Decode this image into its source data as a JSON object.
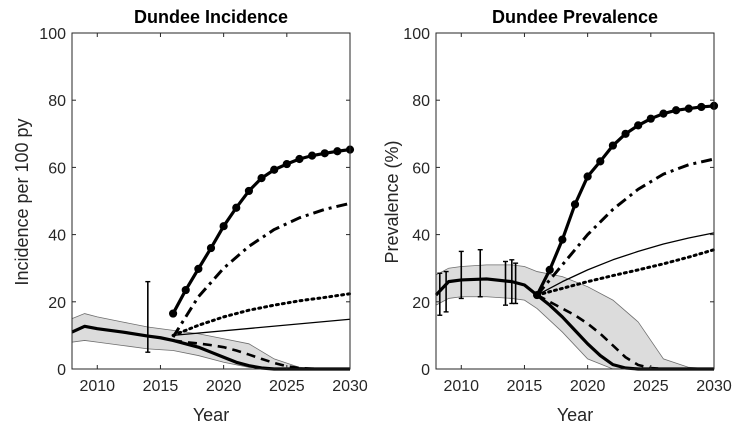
{
  "chart_data": [
    {
      "type": "line",
      "title": "Dundee Incidence",
      "xlabel": "Year",
      "ylabel": "Incidence per 100 py",
      "xlim": [
        2008,
        2030
      ],
      "ylim": [
        0,
        100
      ],
      "xticks": [
        2010,
        2015,
        2020,
        2025,
        2030
      ],
      "yticks": [
        0,
        20,
        40,
        60,
        80,
        100
      ],
      "grid": false,
      "band": {
        "x": [
          2008,
          2009,
          2010,
          2012,
          2014,
          2016,
          2018,
          2020,
          2022,
          2024,
          2026,
          2028,
          2030
        ],
        "upper": [
          15,
          16.5,
          15.5,
          14,
          12.5,
          11.5,
          10.5,
          9,
          7.5,
          3,
          0.5,
          0,
          0
        ],
        "lower": [
          8,
          8.5,
          8,
          7,
          6,
          5.5,
          4,
          2,
          0.5,
          0,
          0,
          0,
          0
        ]
      },
      "series": [
        {
          "style": "thick-solid",
          "x": [
            2008,
            2009,
            2010,
            2012,
            2014,
            2015,
            2016,
            2017,
            2018,
            2019,
            2020,
            2021,
            2022,
            2023,
            2024,
            2025,
            2026,
            2027,
            2028,
            2029,
            2030
          ],
          "y": [
            11,
            12.7,
            12,
            11,
            9.8,
            9.3,
            8.5,
            7.5,
            6.5,
            5,
            3.5,
            2,
            1,
            0.3,
            0,
            0,
            0,
            0,
            0,
            0,
            0
          ]
        },
        {
          "style": "dashed",
          "x": [
            2016,
            2017,
            2018,
            2019,
            2020,
            2021,
            2022,
            2023,
            2024,
            2025,
            2026,
            2027,
            2028
          ],
          "y": [
            8.5,
            8,
            7.6,
            7.1,
            6.5,
            5.5,
            4.3,
            3,
            1.8,
            0.8,
            0.3,
            0.1,
            0
          ]
        },
        {
          "style": "thin-solid",
          "x": [
            2016,
            2030
          ],
          "y": [
            10,
            14.8
          ]
        },
        {
          "style": "dotted",
          "x": [
            2016,
            2018,
            2020,
            2022,
            2024,
            2026,
            2028,
            2030
          ],
          "y": [
            10,
            13,
            15.5,
            17.5,
            19,
            20.3,
            21.3,
            22.4
          ]
        },
        {
          "style": "dash-dot",
          "x": [
            2016,
            2018,
            2020,
            2022,
            2024,
            2026,
            2028,
            2030
          ],
          "y": [
            9.5,
            21.5,
            30,
            36.5,
            41.5,
            45,
            47.5,
            49.3
          ]
        },
        {
          "style": "thick-solid-markers",
          "x": [
            2016,
            2017,
            2018,
            2019,
            2020,
            2021,
            2022,
            2023,
            2024,
            2025,
            2026,
            2027,
            2028,
            2029,
            2030
          ],
          "y": [
            16.5,
            23.5,
            29.8,
            36,
            42.5,
            48,
            53,
            56.8,
            59.3,
            61,
            62.5,
            63.5,
            64.2,
            64.8,
            65.3
          ]
        }
      ],
      "error_bars": [
        {
          "x": 2014,
          "y": 15,
          "low": 5,
          "high": 26
        }
      ]
    },
    {
      "type": "line",
      "title": "Dundee Prevalence",
      "xlabel": "Year",
      "ylabel": "Prevalence (%)",
      "xlim": [
        2008,
        2030
      ],
      "ylim": [
        0,
        100
      ],
      "xticks": [
        2010,
        2015,
        2020,
        2025,
        2030
      ],
      "yticks": [
        0,
        20,
        40,
        60,
        80,
        100
      ],
      "grid": false,
      "band": {
        "x": [
          2008,
          2009,
          2010,
          2012,
          2014,
          2015,
          2016,
          2018,
          2020,
          2022,
          2024,
          2026,
          2028,
          2030
        ],
        "upper": [
          28,
          30,
          30.5,
          31,
          31,
          30.5,
          29,
          27.5,
          24.5,
          20.5,
          14,
          3,
          0.5,
          0
        ],
        "lower": [
          19,
          21,
          21.5,
          21.5,
          21,
          20.5,
          18,
          11,
          3,
          0,
          0,
          0,
          0,
          0
        ]
      },
      "series": [
        {
          "style": "thick-solid",
          "x": [
            2008,
            2009,
            2010,
            2012,
            2014,
            2015,
            2016,
            2017,
            2018,
            2019,
            2020,
            2021,
            2022,
            2023,
            2024,
            2025,
            2026,
            2027,
            2028,
            2029,
            2030
          ],
          "y": [
            22,
            26,
            26.5,
            26.8,
            26,
            25,
            22,
            19,
            15.5,
            11.5,
            7.5,
            4,
            1.3,
            0.3,
            0,
            0,
            0,
            0,
            0,
            0,
            0
          ]
        },
        {
          "style": "dashed",
          "x": [
            2016,
            2017,
            2018,
            2019,
            2020,
            2021,
            2022,
            2023,
            2024,
            2025,
            2026,
            2027
          ],
          "y": [
            22,
            20,
            18,
            16,
            13.5,
            10.5,
            7,
            3.5,
            1.2,
            0.3,
            0,
            0
          ]
        },
        {
          "style": "thin-solid",
          "x": [
            2016,
            2018,
            2020,
            2022,
            2024,
            2026,
            2028,
            2030
          ],
          "y": [
            22,
            26,
            29.5,
            32.5,
            35,
            37.2,
            39,
            40.5
          ]
        },
        {
          "style": "dotted",
          "x": [
            2016,
            2018,
            2020,
            2022,
            2024,
            2026,
            2028,
            2030
          ],
          "y": [
            22,
            24,
            26,
            27.8,
            29.5,
            31.3,
            33.3,
            35.5
          ]
        },
        {
          "style": "dash-dot",
          "x": [
            2016,
            2018,
            2020,
            2022,
            2024,
            2026,
            2028,
            2030
          ],
          "y": [
            22,
            31,
            40,
            47.5,
            53.5,
            58,
            60.8,
            62.5
          ]
        },
        {
          "style": "thick-solid-markers",
          "x": [
            2016,
            2017,
            2018,
            2019,
            2020,
            2021,
            2022,
            2023,
            2024,
            2025,
            2026,
            2027,
            2028,
            2029,
            2030
          ],
          "y": [
            22,
            29.5,
            38.5,
            49,
            57.3,
            61.8,
            66.5,
            70,
            72.5,
            74.5,
            76,
            77,
            77.5,
            78,
            78.3
          ]
        }
      ],
      "error_bars": [
        {
          "x": 2008.3,
          "y": 22,
          "low": 16,
          "high": 28.5
        },
        {
          "x": 2008.8,
          "y": 25,
          "low": 17,
          "high": 29
        },
        {
          "x": 2010,
          "y": 26.5,
          "low": 21,
          "high": 35
        },
        {
          "x": 2011.5,
          "y": 27,
          "low": 21.5,
          "high": 35.5
        },
        {
          "x": 2013.5,
          "y": 26,
          "low": 19,
          "high": 32
        },
        {
          "x": 2014,
          "y": 26,
          "low": 19.5,
          "high": 32.5
        },
        {
          "x": 2014.3,
          "y": 25.5,
          "low": 19.5,
          "high": 31.5
        }
      ]
    }
  ]
}
